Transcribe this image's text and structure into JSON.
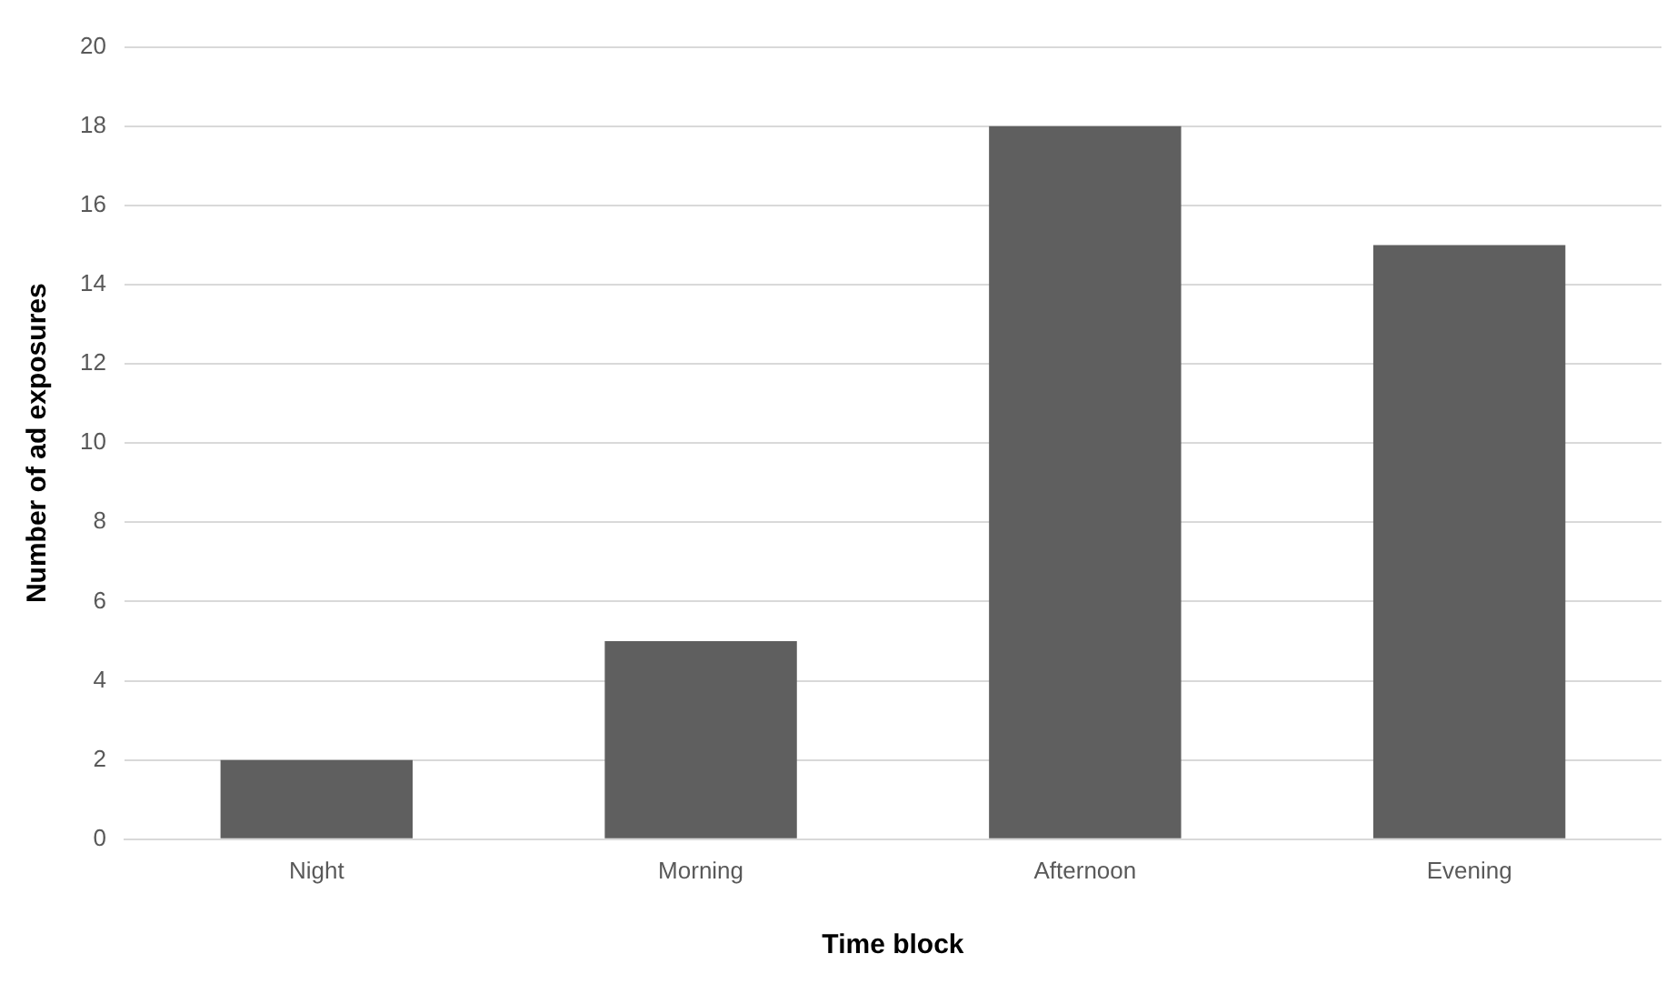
{
  "chart_data": {
    "type": "bar",
    "xlabel": "Time block",
    "ylabel": "Number of ad exposures",
    "categories": [
      "Night",
      "Morning",
      "Afternoon",
      "Evening"
    ],
    "values": [
      2,
      5,
      18,
      15
    ],
    "color": "#5f5f5f",
    "ylim": [
      0,
      20
    ],
    "yticks": [
      0,
      2,
      4,
      6,
      8,
      10,
      12,
      14,
      16,
      18,
      20
    ],
    "grid": "y",
    "legend": false
  }
}
